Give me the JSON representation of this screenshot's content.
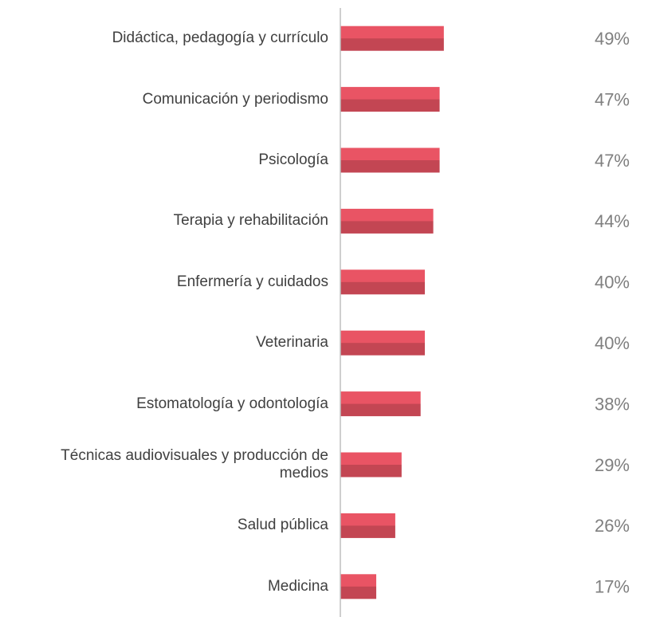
{
  "chart_data": {
    "type": "bar",
    "orientation": "horizontal",
    "categories": [
      "Didáctica, pedagogía y currículo",
      "Comunicación y periodismo",
      "Psicología",
      "Terapia y rehabilitación",
      "Enfermería y cuidados",
      "Veterinaria",
      "Estomatología y odontología",
      "Técnicas audiovisuales y producción de medios",
      "Salud pública",
      "Medicina"
    ],
    "values": [
      49,
      47,
      47,
      44,
      40,
      40,
      38,
      29,
      26,
      17
    ],
    "value_labels": [
      "49%",
      "47%",
      "47%",
      "44%",
      "40%",
      "40%",
      "38%",
      "29%",
      "26%",
      "17%"
    ],
    "color": "#e95464",
    "xlim": [
      0,
      100
    ]
  }
}
